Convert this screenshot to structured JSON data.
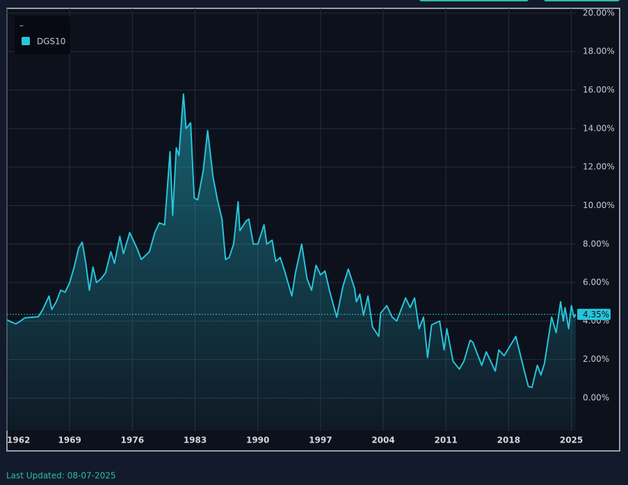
{
  "chart_data": {
    "type": "line",
    "legend_title": "–",
    "footer": "Last Updated: 08-07-2025",
    "x": [
      1962.0,
      1962.5,
      1963.0,
      1963.5,
      1964.0,
      1965.0,
      1965.5,
      1966.0,
      1966.7,
      1967.0,
      1967.5,
      1968.0,
      1968.5,
      1969.0,
      1969.5,
      1970.0,
      1970.4,
      1970.8,
      1971.2,
      1971.6,
      1972.0,
      1972.5,
      1973.0,
      1973.6,
      1974.0,
      1974.6,
      1975.0,
      1975.7,
      1976.5,
      1977.0,
      1977.9,
      1978.5,
      1979.0,
      1979.6,
      1980.2,
      1980.5,
      1980.9,
      1981.2,
      1981.7,
      1982.0,
      1982.5,
      1982.9,
      1983.3,
      1983.9,
      1984.4,
      1985.0,
      1985.5,
      1986.0,
      1986.4,
      1986.8,
      1987.3,
      1987.8,
      1988.0,
      1988.7,
      1989.0,
      1989.5,
      1990.0,
      1990.7,
      1991.0,
      1991.6,
      1992.0,
      1992.5,
      1993.0,
      1993.8,
      1994.2,
      1994.9,
      1995.5,
      1996.0,
      1996.5,
      1997.0,
      1997.5,
      1998.0,
      1998.8,
      1999.5,
      2000.1,
      2000.8,
      2001.0,
      2001.4,
      2001.8,
      2002.3,
      2002.8,
      2003.5,
      2003.7,
      2004.4,
      2005.0,
      2005.5,
      2006.5,
      2007.0,
      2007.5,
      2008.0,
      2008.5,
      2008.95,
      2009.4,
      2010.3,
      2010.8,
      2011.1,
      2011.8,
      2012.5,
      2013.0,
      2013.7,
      2014.0,
      2015.0,
      2015.5,
      2016.5,
      2016.9,
      2017.5,
      2018.8,
      2019.7,
      2020.2,
      2020.6,
      2021.2,
      2021.6,
      2022.0,
      2022.8,
      2023.3,
      2023.8,
      2024.1,
      2024.3,
      2024.7,
      2025.0,
      2025.3,
      2025.5
    ],
    "series": [
      {
        "name": "DGS10",
        "color": "#26c6da",
        "values": [
          4.06,
          3.95,
          3.85,
          4.0,
          4.17,
          4.2,
          4.22,
          4.6,
          5.3,
          4.6,
          5.0,
          5.6,
          5.5,
          6.0,
          6.8,
          7.8,
          8.1,
          7.0,
          5.6,
          6.8,
          6.0,
          6.2,
          6.5,
          7.6,
          7.0,
          8.4,
          7.5,
          8.6,
          7.8,
          7.2,
          7.6,
          8.6,
          9.1,
          9.0,
          12.8,
          9.5,
          13.0,
          12.6,
          15.8,
          14.0,
          14.3,
          10.4,
          10.3,
          11.8,
          13.9,
          11.5,
          10.3,
          9.3,
          7.2,
          7.3,
          8.0,
          10.2,
          8.7,
          9.2,
          9.3,
          8.0,
          8.0,
          9.0,
          8.0,
          8.2,
          7.1,
          7.3,
          6.6,
          5.3,
          6.5,
          8.0,
          6.2,
          5.6,
          6.9,
          6.4,
          6.6,
          5.6,
          4.2,
          5.8,
          6.7,
          5.7,
          5.0,
          5.4,
          4.3,
          5.3,
          3.7,
          3.2,
          4.4,
          4.8,
          4.2,
          4.0,
          5.2,
          4.7,
          5.2,
          3.6,
          4.2,
          2.1,
          3.8,
          4.0,
          2.5,
          3.6,
          1.9,
          1.5,
          1.9,
          3.0,
          2.9,
          1.7,
          2.4,
          1.4,
          2.5,
          2.2,
          3.2,
          1.5,
          0.6,
          0.55,
          1.7,
          1.2,
          1.8,
          4.2,
          3.4,
          5.0,
          4.0,
          4.7,
          3.6,
          4.8,
          4.2,
          4.35
        ]
      }
    ],
    "current": {
      "value": 4.35,
      "label": "4.35%"
    },
    "xlim": [
      1962,
      2025.5
    ],
    "xticks": [
      1962,
      1969,
      1976,
      1983,
      1990,
      1997,
      2004,
      2011,
      2018,
      2025
    ],
    "ylim": [
      -1.7,
      20.25
    ],
    "yticks": [
      {
        "value": 0,
        "label": "0.00%"
      },
      {
        "value": 2,
        "label": "2.00%"
      },
      {
        "value": 4,
        "label": "4.00%"
      },
      {
        "value": 6,
        "label": "6.00%"
      },
      {
        "value": 8,
        "label": "8.00%"
      },
      {
        "value": 10,
        "label": "10.00%"
      },
      {
        "value": 12,
        "label": "12.00%"
      },
      {
        "value": 14,
        "label": "14.00%"
      },
      {
        "value": 16,
        "label": "16.00%"
      },
      {
        "value": 18,
        "label": "18.00%"
      },
      {
        "value": 20,
        "label": "20.00%"
      }
    ],
    "grid": true
  }
}
